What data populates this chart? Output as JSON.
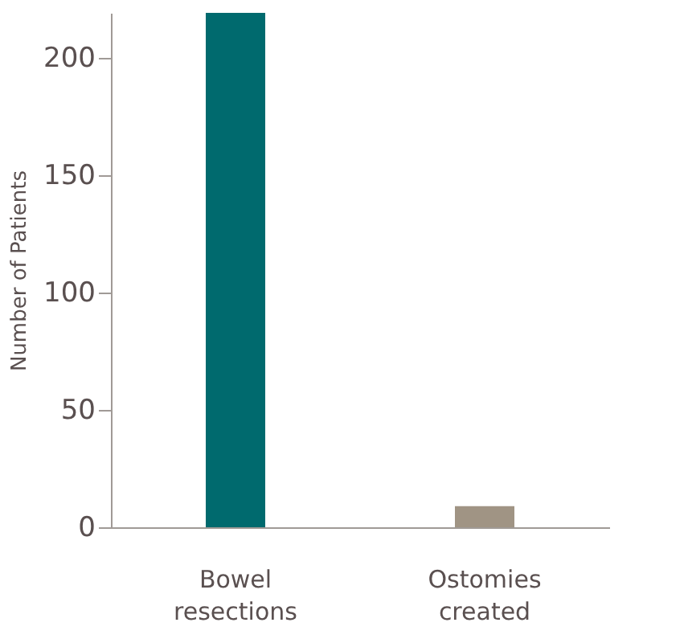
{
  "chart_data": {
    "type": "bar",
    "ylabel": "Number of Patients",
    "categories": [
      "Bowel resections",
      "Ostomies created"
    ],
    "values": [
      219,
      9
    ],
    "colors": [
      "#006a6e",
      "#a09484"
    ],
    "ylim": [
      0,
      219
    ],
    "yticks": [
      0,
      50,
      100,
      150,
      200
    ],
    "grid": false
  }
}
